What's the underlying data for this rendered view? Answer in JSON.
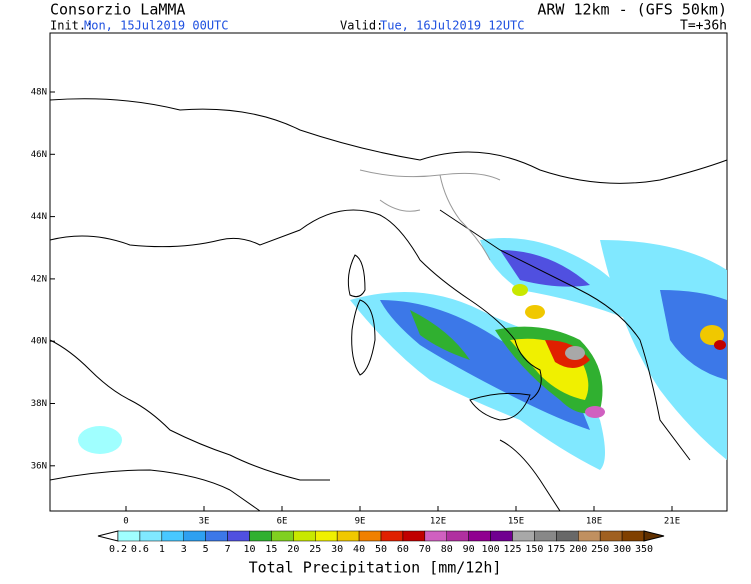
{
  "header": {
    "title": "Consorzio LaMMA",
    "model": "ARW 12km - (GFS 50km)",
    "init_label": "Init.:",
    "init": "Mon, 15Jul2019 00UTC",
    "valid_label": "Valid:",
    "valid": "Tue, 16Jul2019 12UTC",
    "lead": "T=+36h"
  },
  "map": {
    "lat_labels": [
      "48N",
      "46N",
      "44N",
      "42N",
      "40N",
      "38N",
      "36N"
    ],
    "lon_labels": [
      "0",
      "3E",
      "6E",
      "9E",
      "12E",
      "15E",
      "18E",
      "21E"
    ]
  },
  "colorbar": {
    "title": "Total Precipitation [mm/12h]",
    "levels": [
      "0.2",
      "0.6",
      "1",
      "3",
      "5",
      "7",
      "10",
      "15",
      "20",
      "25",
      "30",
      "40",
      "50",
      "60",
      "70",
      "80",
      "90",
      "100",
      "125",
      "150",
      "175",
      "200",
      "250",
      "300",
      "350"
    ],
    "colors": [
      "#a0ffff",
      "#80e8ff",
      "#48c8ff",
      "#2ea0f0",
      "#3c78e8",
      "#5050e0",
      "#30b030",
      "#80d020",
      "#c8e800",
      "#f0f000",
      "#f0c800",
      "#f08000",
      "#e02000",
      "#c00000",
      "#d060c0",
      "#b030a0",
      "#900090",
      "#700090",
      "#a8a8a8",
      "#888888",
      "#686868",
      "#c09060",
      "#a06020",
      "#804000"
    ],
    "low_color": "#ffffff",
    "high_color": "#603000"
  }
}
